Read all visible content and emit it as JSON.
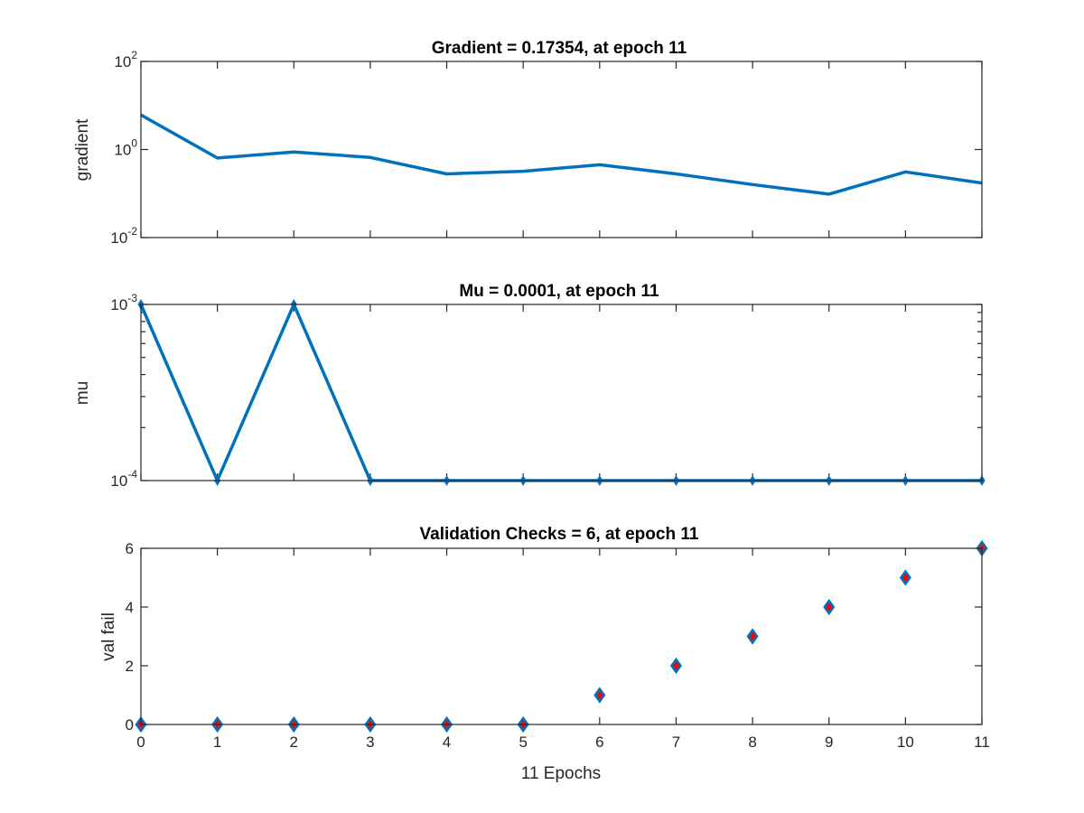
{
  "colors": {
    "line": "#0072BD",
    "marker_fill": "#FF0000",
    "axes": "#262626"
  },
  "chart_data": [
    {
      "type": "line",
      "title": "Gradient = 0.17354, at epoch 11",
      "xlabel": "",
      "ylabel": "gradient",
      "yscale": "log",
      "xlim": [
        0,
        11
      ],
      "ylim": [
        0.01,
        100
      ],
      "x_ticks": [
        0,
        1,
        2,
        3,
        4,
        5,
        6,
        7,
        8,
        9,
        10,
        11
      ],
      "y_ticks": [
        {
          "value": 0.01,
          "base": "10",
          "exp": "-2"
        },
        {
          "value": 1,
          "base": "10",
          "exp": "0"
        },
        {
          "value": 100,
          "base": "10",
          "exp": "2"
        }
      ],
      "x": [
        0,
        1,
        2,
        3,
        4,
        5,
        6,
        7,
        8,
        9,
        10,
        11
      ],
      "values": [
        6.1,
        0.64,
        0.88,
        0.66,
        0.28,
        0.32,
        0.45,
        0.28,
        0.16,
        0.097,
        0.31,
        0.17354
      ]
    },
    {
      "type": "line",
      "title": "Mu = 0.0001, at epoch 11",
      "xlabel": "",
      "ylabel": "mu",
      "yscale": "log",
      "xlim": [
        0,
        11
      ],
      "ylim": [
        0.0001,
        0.001
      ],
      "x_ticks": [
        0,
        1,
        2,
        3,
        4,
        5,
        6,
        7,
        8,
        9,
        10,
        11
      ],
      "y_ticks": [
        {
          "value": 0.0001,
          "base": "10",
          "exp": "-4"
        },
        {
          "value": 0.001,
          "base": "10",
          "exp": "-3"
        }
      ],
      "x": [
        0,
        1,
        2,
        3,
        4,
        5,
        6,
        7,
        8,
        9,
        10,
        11
      ],
      "values": [
        0.001,
        0.0001,
        0.001,
        0.0001,
        0.0001,
        0.0001,
        0.0001,
        0.0001,
        0.0001,
        0.0001,
        0.0001,
        0.0001
      ]
    },
    {
      "type": "scatter",
      "title": "Validation Checks = 6, at epoch 11",
      "xlabel": "11 Epochs",
      "ylabel": "val fail",
      "yscale": "linear",
      "xlim": [
        0,
        11
      ],
      "ylim": [
        0,
        6
      ],
      "x_ticks": [
        0,
        1,
        2,
        3,
        4,
        5,
        6,
        7,
        8,
        9,
        10,
        11
      ],
      "y_ticks": [
        {
          "value": 0,
          "label": "0"
        },
        {
          "value": 2,
          "label": "2"
        },
        {
          "value": 4,
          "label": "4"
        },
        {
          "value": 6,
          "label": "6"
        }
      ],
      "x": [
        0,
        1,
        2,
        3,
        4,
        5,
        6,
        7,
        8,
        9,
        10,
        11
      ],
      "values": [
        0,
        0,
        0,
        0,
        0,
        0,
        1,
        2,
        3,
        4,
        5,
        6
      ]
    }
  ]
}
